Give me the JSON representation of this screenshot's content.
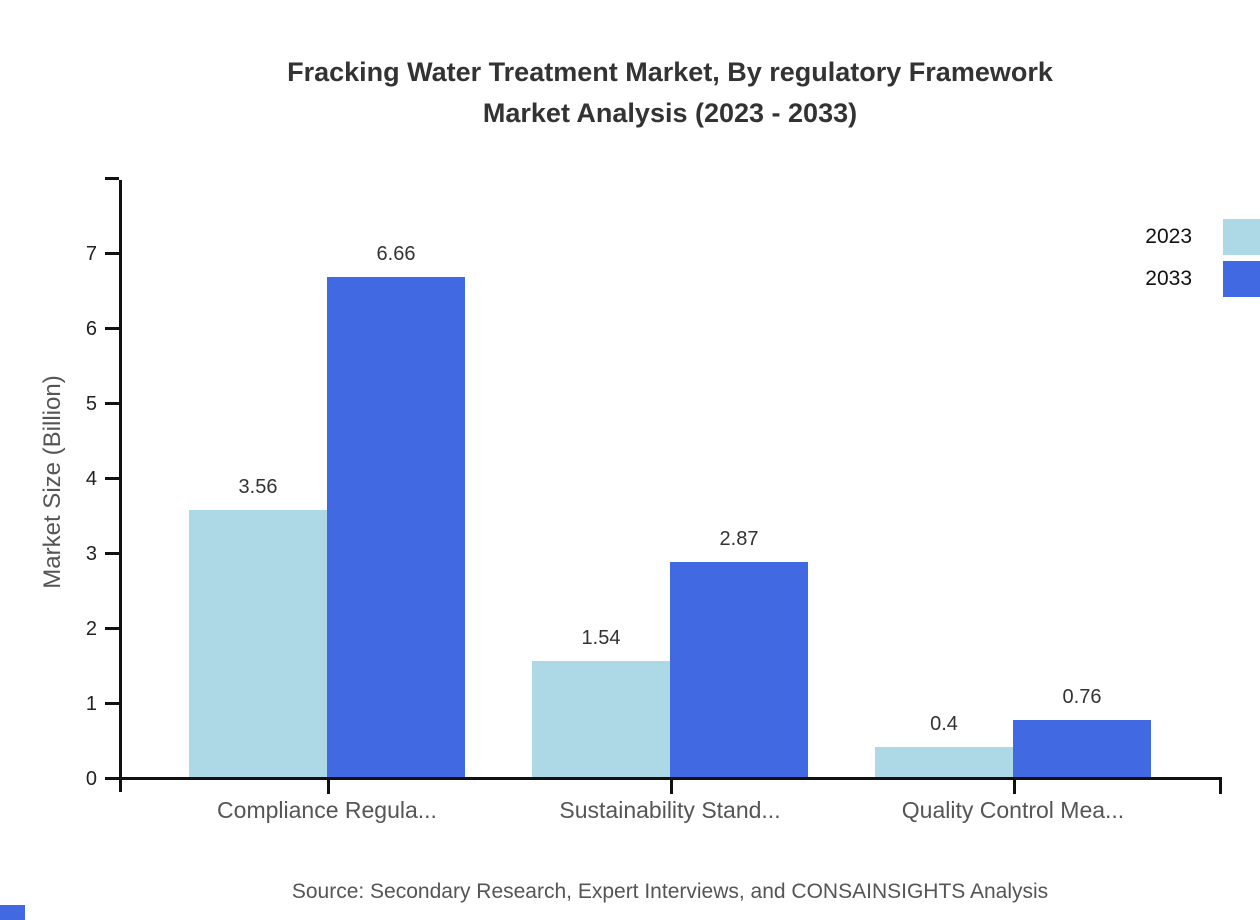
{
  "title": {
    "line1": "Fracking Water Treatment Market, By regulatory Framework",
    "line2": "Market Analysis (2023 - 2033)"
  },
  "source": "Source: Secondary Research, Expert Interviews, and CONSAINSIGHTS Analysis",
  "legend": {
    "items": [
      {
        "label": "2023",
        "color": "#ADD8E6"
      },
      {
        "label": "2033",
        "color": "#4169E1"
      }
    ]
  },
  "colors": {
    "series_2023": "#ADD8E6",
    "series_2033": "#4169E1",
    "axis": "#111111",
    "title_text": "#333333",
    "muted_text": "#555555"
  },
  "chart_data": {
    "type": "bar",
    "title": "Fracking Water Treatment Market, By regulatory Framework Market Analysis (2023 - 2033)",
    "categories": [
      "Compliance Regula...",
      "Sustainability Stand...",
      "Quality Control Mea..."
    ],
    "series": [
      {
        "name": "2023",
        "color": "#ADD8E6",
        "values": [
          3.56,
          1.54,
          0.4
        ]
      },
      {
        "name": "2033",
        "color": "#4169E1",
        "values": [
          6.66,
          2.87,
          0.76
        ]
      }
    ],
    "value_labels": [
      [
        "3.56",
        "1.54",
        "0.4"
      ],
      [
        "6.66",
        "2.87",
        "0.76"
      ]
    ],
    "xlabel": "",
    "ylabel": "Market Size (Billion)",
    "yticks": [
      0,
      1,
      2,
      3,
      4,
      5,
      6,
      7
    ],
    "ylim": [
      0,
      8
    ],
    "grid": false,
    "legend_position": "top-right"
  }
}
